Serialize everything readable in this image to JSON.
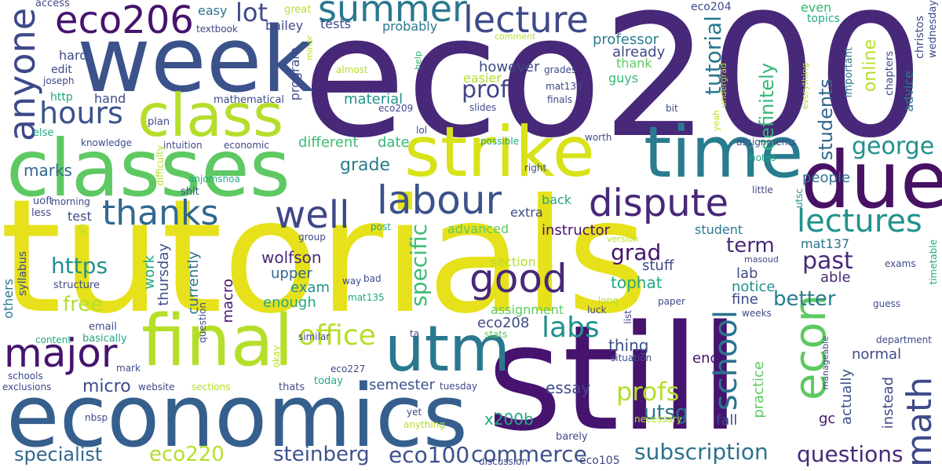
{
  "words": [
    {
      "text": "tutorials",
      "color": "#e6e11a"
    },
    {
      "text": "eco200",
      "color": "#482878"
    },
    {
      "text": "still",
      "color": "#46136e"
    },
    {
      "text": "week",
      "color": "#3b528b"
    },
    {
      "text": "classes",
      "color": "#5ec962"
    },
    {
      "text": "economics",
      "color": "#355f8d"
    },
    {
      "text": "strike",
      "color": "#d8e219"
    },
    {
      "text": "time",
      "color": "#287c8e"
    },
    {
      "text": "due",
      "color": "#471164"
    },
    {
      "text": "final",
      "color": "#b5de2b"
    },
    {
      "text": "utm",
      "color": "#2a788e"
    },
    {
      "text": "class",
      "color": "#b5de2b"
    },
    {
      "text": "eco206",
      "color": "#46136e"
    },
    {
      "text": "lecture",
      "color": "#3e4a89"
    },
    {
      "text": "summer",
      "color": "#2a788e"
    },
    {
      "text": "anyone",
      "color": "#3e4989"
    },
    {
      "text": "major",
      "color": "#46136e"
    },
    {
      "text": "labour",
      "color": "#3b528b"
    },
    {
      "text": "dispute",
      "color": "#482878"
    },
    {
      "text": "thanks",
      "color": "#31688e"
    },
    {
      "text": "well",
      "color": "#404688"
    },
    {
      "text": "good",
      "color": "#482878"
    },
    {
      "text": "econ",
      "color": "#5ec962"
    },
    {
      "text": "math",
      "color": "#3e4a89"
    },
    {
      "text": "school",
      "color": "#2c728e"
    },
    {
      "text": "hours",
      "color": "#3b528b"
    },
    {
      "text": "lectures",
      "color": "#21918c"
    },
    {
      "text": "labs",
      "color": "#21918c"
    },
    {
      "text": "office",
      "color": "#b5de2b"
    },
    {
      "text": "profs",
      "color": "#b5de2b"
    },
    {
      "text": "tutorial",
      "color": "#2a788e"
    },
    {
      "text": "specific",
      "color": "#3dbc74"
    },
    {
      "text": "george",
      "color": "#21918c"
    },
    {
      "text": "commerce",
      "color": "#3b528b"
    },
    {
      "text": "subscription",
      "color": "#2c728e"
    },
    {
      "text": "questions",
      "color": "#482878"
    },
    {
      "text": "specialist",
      "color": "#31688e"
    },
    {
      "text": "eco220",
      "color": "#b5de2b"
    },
    {
      "text": "steinberg",
      "color": "#3b528b"
    },
    {
      "text": "eco100",
      "color": "#3b528b"
    },
    {
      "text": "https",
      "color": "#21918c"
    },
    {
      "text": "lot",
      "color": "#3e4a89"
    },
    {
      "text": "grad",
      "color": "#46136e"
    },
    {
      "text": "past",
      "color": "#482878"
    },
    {
      "text": "prof",
      "color": "#404688"
    },
    {
      "text": "students",
      "color": "#31688e"
    },
    {
      "text": "definitely",
      "color": "#35b779"
    },
    {
      "text": "online",
      "color": "#b5de2b"
    },
    {
      "text": "term",
      "color": "#482878"
    },
    {
      "text": "better",
      "color": "#287c8e"
    },
    {
      "text": "free",
      "color": "#b5de2b"
    },
    {
      "text": "marks",
      "color": "#31688e"
    },
    {
      "text": "grade",
      "color": "#287c8e"
    },
    {
      "text": "utsg",
      "color": "#2c728e"
    },
    {
      "text": "micro",
      "color": "#3e4a89"
    },
    {
      "text": "semester",
      "color": "#3b528b"
    },
    {
      "text": "essay",
      "color": "#3e4a89"
    },
    {
      "text": "x200b",
      "color": "#22a884"
    },
    {
      "text": "eco208",
      "color": "#3e4a89"
    },
    {
      "text": "thing",
      "color": "#3b528b"
    },
    {
      "text": "wolfson",
      "color": "#482878"
    },
    {
      "text": "upper",
      "color": "#31688e"
    },
    {
      "text": "exam",
      "color": "#21918c"
    },
    {
      "text": "enough",
      "color": "#22a884"
    },
    {
      "text": "professor",
      "color": "#287c8e"
    },
    {
      "text": "already",
      "color": "#3e4a89"
    },
    {
      "text": "tutorial",
      "color": "#3e4989"
    },
    {
      "text": "end",
      "color": "#46136e"
    },
    {
      "text": "fall",
      "color": "#3e4a89"
    },
    {
      "text": "practice",
      "color": "#5ec962"
    },
    {
      "text": "actually",
      "color": "#3b528b"
    },
    {
      "text": "instead",
      "color": "#3e4a89"
    },
    {
      "text": "normal",
      "color": "#3e4a89"
    },
    {
      "text": "stuff",
      "color": "#3e4a89"
    },
    {
      "text": "lab",
      "color": "#3e4a89"
    },
    {
      "text": "notice",
      "color": "#21918c"
    },
    {
      "text": "fine",
      "color": "#3e4a89"
    },
    {
      "text": "tophat",
      "color": "#22a884"
    },
    {
      "text": "instructor",
      "color": "#46136e"
    },
    {
      "text": "student",
      "color": "#2a788e"
    },
    {
      "text": "currently",
      "color": "#2c728e"
    },
    {
      "text": "thursday",
      "color": "#3b528b"
    },
    {
      "text": "work",
      "color": "#22a884"
    },
    {
      "text": "macro",
      "color": "#46136e"
    },
    {
      "text": "people",
      "color": "#2c728e"
    },
    {
      "text": "mat137",
      "color": "#2c728e"
    },
    {
      "text": "able",
      "color": "#482878"
    },
    {
      "text": "material",
      "color": "#21918c"
    },
    {
      "text": "however",
      "color": "#3e4a89"
    },
    {
      "text": "different",
      "color": "#3dbc74"
    },
    {
      "text": "date",
      "color": "#35b779"
    },
    {
      "text": "hard",
      "color": "#3e4a89"
    },
    {
      "text": "hand",
      "color": "#3e4a89"
    },
    {
      "text": "easy",
      "color": "#2c728e"
    },
    {
      "text": "tests",
      "color": "#3e4a89"
    },
    {
      "text": "bailey",
      "color": "#3e4a89"
    },
    {
      "text": "probably",
      "color": "#2a788e"
    },
    {
      "text": "guys",
      "color": "#35b779"
    },
    {
      "text": "thank",
      "color": "#5ec962"
    },
    {
      "text": "easier",
      "color": "#b5de2b"
    },
    {
      "text": "program",
      "color": "#3e4a89"
    },
    {
      "text": "eco204",
      "color": "#3e4a89"
    },
    {
      "text": "test",
      "color": "#3e4a89"
    },
    {
      "text": "back",
      "color": "#22a884"
    },
    {
      "text": "extra",
      "color": "#3e4a89"
    },
    {
      "text": "advanced",
      "color": "#5ec962"
    },
    {
      "text": "section",
      "color": "#b5de2b"
    },
    {
      "text": "assignment",
      "color": "#5ec962"
    },
    {
      "text": "even",
      "color": "#35b779"
    },
    {
      "text": "topics",
      "color": "#22a884"
    },
    {
      "text": "important",
      "color": "#2a788e"
    },
    {
      "text": "chapters",
      "color": "#3e4a89"
    },
    {
      "text": "advice",
      "color": "#2a788e"
    },
    {
      "text": "christos",
      "color": "#3e4a89"
    },
    {
      "text": "wednesday",
      "color": "#3e4a89"
    },
    {
      "text": "access",
      "color": "#3e4a89"
    },
    {
      "text": "great",
      "color": "#b5de2b"
    },
    {
      "text": "textbook",
      "color": "#3e4a89"
    },
    {
      "text": "edit",
      "color": "#3e4a89"
    },
    {
      "text": "joseph",
      "color": "#3e4a89"
    },
    {
      "text": "http",
      "color": "#22a884"
    },
    {
      "text": "mathematical",
      "color": "#3e4a89"
    },
    {
      "text": "plan",
      "color": "#3e4a89"
    },
    {
      "text": "else",
      "color": "#22a884"
    },
    {
      "text": "knowledge",
      "color": "#3e4a89"
    },
    {
      "text": "intuition",
      "color": "#3e4a89"
    },
    {
      "text": "economic",
      "color": "#3e4a89"
    },
    {
      "text": "difficulty",
      "color": "#b5de2b"
    },
    {
      "text": "anjomshoa",
      "color": "#22a884"
    },
    {
      "text": "shit",
      "color": "#3e4a89"
    },
    {
      "text": "uoft",
      "color": "#3e4a89"
    },
    {
      "text": "morning",
      "color": "#3e4a89"
    },
    {
      "text": "less",
      "color": "#3e4a89"
    },
    {
      "text": "oh",
      "color": "#b5de2b"
    },
    {
      "text": "others",
      "color": "#2a788e"
    },
    {
      "text": "syllabus",
      "color": "#3e4a89"
    },
    {
      "text": "structure",
      "color": "#3e4a89"
    },
    {
      "text": "email",
      "color": "#3e4a89"
    },
    {
      "text": "basically",
      "color": "#22a884"
    },
    {
      "text": "content",
      "color": "#22a884"
    },
    {
      "text": "mark",
      "color": "#3e4a89"
    },
    {
      "text": "schools",
      "color": "#3e4a89"
    },
    {
      "text": "exclusions",
      "color": "#3e4a89"
    },
    {
      "text": "question",
      "color": "#3e4a89"
    },
    {
      "text": "website",
      "color": "#3e4a89"
    },
    {
      "text": "sections",
      "color": "#b5de2b"
    },
    {
      "text": "thats",
      "color": "#3e4a89"
    },
    {
      "text": "today",
      "color": "#22a884"
    },
    {
      "text": "eco227",
      "color": "#3e4a89"
    },
    {
      "text": "okay",
      "color": "#b5de2b"
    },
    {
      "text": "similar",
      "color": "#3e4a89"
    },
    {
      "text": "ta",
      "color": "#3e4a89"
    },
    {
      "text": "stats",
      "color": "#5ec962"
    },
    {
      "text": "nbsp",
      "color": "#3e4a89"
    },
    {
      "text": "anything",
      "color": "#b5de2b"
    },
    {
      "text": "yet",
      "color": "#3e4a89"
    },
    {
      "text": "tuesday",
      "color": "#3e4a89"
    },
    {
      "text": "necessary",
      "color": "#b5de2b"
    },
    {
      "text": "barely",
      "color": "#3e4a89"
    },
    {
      "text": "eco105",
      "color": "#3e4a89"
    },
    {
      "text": "discussion",
      "color": "#3e4a89"
    },
    {
      "text": "comment",
      "color": "#b5de2b"
    },
    {
      "text": "help",
      "color": "#35b779"
    },
    {
      "text": "almost",
      "color": "#b5de2b"
    },
    {
      "text": "minor",
      "color": "#b5de2b"
    },
    {
      "text": "grades",
      "color": "#3e4a89"
    },
    {
      "text": "mat133",
      "color": "#3e4a89"
    },
    {
      "text": "finals",
      "color": "#3e4a89"
    },
    {
      "text": "slides",
      "color": "#3e4a89"
    },
    {
      "text": "eco209",
      "color": "#3e4a89"
    },
    {
      "text": "lol",
      "color": "#3e4a89"
    },
    {
      "text": "bit",
      "color": "#3e4a89"
    },
    {
      "text": "yeah",
      "color": "#b5de2b"
    },
    {
      "text": "undergrad",
      "color": "#b5de2b"
    },
    {
      "text": "everything",
      "color": "#b5de2b"
    },
    {
      "text": "possible",
      "color": "#22a884"
    },
    {
      "text": "worth",
      "color": "#3e4a89"
    },
    {
      "text": "right",
      "color": "#3e4a89"
    },
    {
      "text": "assignments",
      "color": "#3e4a89"
    },
    {
      "text": "notes",
      "color": "#22a884"
    },
    {
      "text": "utsc",
      "color": "#21918c"
    },
    {
      "text": "little",
      "color": "#3e4a89"
    },
    {
      "text": "post",
      "color": "#22a884"
    },
    {
      "text": "group",
      "color": "#3e4a89"
    },
    {
      "text": "version",
      "color": "#b5de2b"
    },
    {
      "text": "masoud",
      "color": "#3e4a89"
    },
    {
      "text": "way",
      "color": "#3e4a89"
    },
    {
      "text": "bad",
      "color": "#3e4a89"
    },
    {
      "text": "mat135",
      "color": "#22a884"
    },
    {
      "text": "long",
      "color": "#b5de2b"
    },
    {
      "text": "paper",
      "color": "#3e4a89"
    },
    {
      "text": "luck",
      "color": "#3e4a89"
    },
    {
      "text": "list",
      "color": "#3e4a89"
    },
    {
      "text": "weeks",
      "color": "#3e4a89"
    },
    {
      "text": "guess",
      "color": "#3e4a89"
    },
    {
      "text": "exams",
      "color": "#3e4a89"
    },
    {
      "text": "timetable",
      "color": "#22a884"
    },
    {
      "text": "situation",
      "color": "#3e4a89"
    },
    {
      "text": "manageable",
      "color": "#3e4a89"
    },
    {
      "text": "department",
      "color": "#3e4a89"
    },
    {
      "text": "gc",
      "color": "#46136e"
    }
  ]
}
